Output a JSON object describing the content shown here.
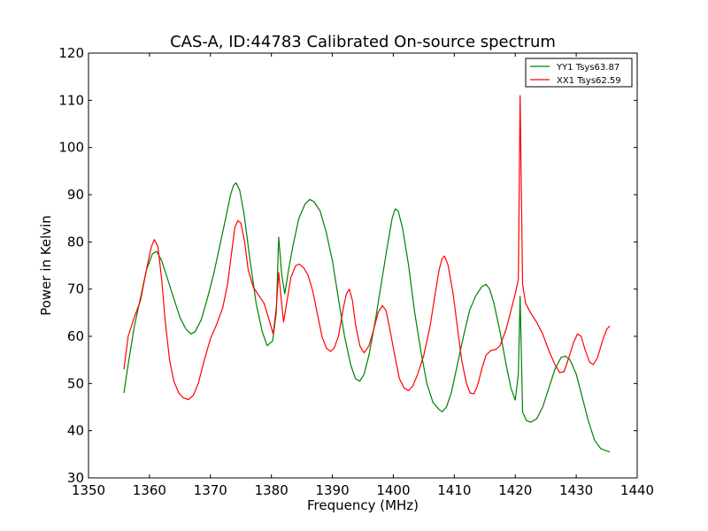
{
  "chart_data": {
    "type": "line",
    "title": "CAS-A, ID:44783 Calibrated On-source spectrum",
    "xlabel": "Frequency (MHz)",
    "ylabel": "Power in Kelvin",
    "xlim": [
      1350,
      1440
    ],
    "ylim": [
      30,
      120
    ],
    "xticks": [
      1350,
      1360,
      1370,
      1380,
      1390,
      1400,
      1410,
      1420,
      1430,
      1440
    ],
    "yticks": [
      30,
      40,
      50,
      60,
      70,
      80,
      90,
      100,
      110,
      120
    ],
    "grid": false,
    "legend_position": "top-right",
    "series": [
      {
        "name": "YY1 Tsys63.87",
        "color": "#008000",
        "points": [
          [
            1355.8,
            48
          ],
          [
            1356.5,
            54
          ],
          [
            1357.5,
            62
          ],
          [
            1358.5,
            68
          ],
          [
            1359.5,
            74
          ],
          [
            1360.5,
            77.5
          ],
          [
            1361.2,
            78
          ],
          [
            1362,
            76
          ],
          [
            1363,
            72
          ],
          [
            1364,
            68
          ],
          [
            1365,
            64
          ],
          [
            1366,
            61.5
          ],
          [
            1366.8,
            60.5
          ],
          [
            1367.5,
            61
          ],
          [
            1368.5,
            63.5
          ],
          [
            1369.5,
            68
          ],
          [
            1370.5,
            73
          ],
          [
            1371.5,
            79
          ],
          [
            1372.5,
            85
          ],
          [
            1373.3,
            90
          ],
          [
            1373.8,
            92
          ],
          [
            1374.2,
            92.5
          ],
          [
            1374.8,
            91
          ],
          [
            1375.5,
            86
          ],
          [
            1376.5,
            76
          ],
          [
            1377.5,
            67
          ],
          [
            1378.5,
            61
          ],
          [
            1379.3,
            58
          ],
          [
            1380.2,
            59
          ],
          [
            1380.8,
            65
          ],
          [
            1381.2,
            81
          ],
          [
            1381.7,
            73
          ],
          [
            1382.2,
            69
          ],
          [
            1382.8,
            74
          ],
          [
            1383.5,
            79
          ],
          [
            1384.5,
            85
          ],
          [
            1385.5,
            88
          ],
          [
            1386.3,
            89
          ],
          [
            1387,
            88.5
          ],
          [
            1388,
            86.5
          ],
          [
            1389,
            82
          ],
          [
            1390,
            76
          ],
          [
            1391,
            68
          ],
          [
            1392,
            60
          ],
          [
            1393,
            54
          ],
          [
            1393.8,
            51
          ],
          [
            1394.5,
            50.5
          ],
          [
            1395.2,
            52
          ],
          [
            1396,
            56
          ],
          [
            1397,
            63
          ],
          [
            1398,
            71
          ],
          [
            1399,
            79
          ],
          [
            1399.8,
            85
          ],
          [
            1400.3,
            87
          ],
          [
            1400.8,
            86.5
          ],
          [
            1401.5,
            83
          ],
          [
            1402.5,
            75
          ],
          [
            1403.5,
            65
          ],
          [
            1404.5,
            57
          ],
          [
            1405.5,
            50
          ],
          [
            1406.5,
            46
          ],
          [
            1407.5,
            44.5
          ],
          [
            1408,
            44
          ],
          [
            1408.7,
            45
          ],
          [
            1409.5,
            48
          ],
          [
            1410.5,
            54
          ],
          [
            1411.5,
            60
          ],
          [
            1412.5,
            65.5
          ],
          [
            1413.5,
            68.5
          ],
          [
            1414.5,
            70.5
          ],
          [
            1415.2,
            71
          ],
          [
            1415.8,
            70
          ],
          [
            1416.5,
            67
          ],
          [
            1417.5,
            61
          ],
          [
            1418.5,
            54
          ],
          [
            1419.3,
            49
          ],
          [
            1420,
            46.5
          ],
          [
            1420.5,
            52
          ],
          [
            1420.8,
            68.5
          ],
          [
            1421.2,
            44
          ],
          [
            1421.8,
            42.2
          ],
          [
            1422.5,
            41.8
          ],
          [
            1423.5,
            42.5
          ],
          [
            1424.5,
            45
          ],
          [
            1425.5,
            49
          ],
          [
            1426.5,
            53
          ],
          [
            1427.5,
            55.5
          ],
          [
            1428.2,
            55.8
          ],
          [
            1429,
            55
          ],
          [
            1430,
            52
          ],
          [
            1431,
            47
          ],
          [
            1432,
            42
          ],
          [
            1433,
            38
          ],
          [
            1434,
            36.2
          ],
          [
            1435,
            35.7
          ],
          [
            1435.5,
            35.5
          ]
        ]
      },
      {
        "name": "XX1 Tsys62.59",
        "color": "#ff0000",
        "points": [
          [
            1355.8,
            53
          ],
          [
            1356.5,
            60
          ],
          [
            1357.5,
            64
          ],
          [
            1358.5,
            67.5
          ],
          [
            1359.5,
            74
          ],
          [
            1360.3,
            79
          ],
          [
            1360.8,
            80.5
          ],
          [
            1361.4,
            79
          ],
          [
            1362,
            72
          ],
          [
            1362.6,
            63
          ],
          [
            1363.3,
            55
          ],
          [
            1364,
            50.5
          ],
          [
            1364.8,
            48
          ],
          [
            1365.5,
            47
          ],
          [
            1366.4,
            46.6
          ],
          [
            1367.2,
            47.5
          ],
          [
            1368,
            50
          ],
          [
            1369,
            55
          ],
          [
            1370,
            59.5
          ],
          [
            1371,
            62.5
          ],
          [
            1372,
            66
          ],
          [
            1372.8,
            71
          ],
          [
            1373.5,
            78
          ],
          [
            1374,
            83
          ],
          [
            1374.5,
            84.5
          ],
          [
            1375,
            84
          ],
          [
            1375.6,
            80
          ],
          [
            1376.2,
            74
          ],
          [
            1377,
            70.5
          ],
          [
            1378,
            68.5
          ],
          [
            1378.8,
            67
          ],
          [
            1379.5,
            64
          ],
          [
            1380.3,
            60.5
          ],
          [
            1380.8,
            66
          ],
          [
            1381.2,
            73.5
          ],
          [
            1381.6,
            68
          ],
          [
            1382,
            63
          ],
          [
            1382.5,
            67
          ],
          [
            1383.2,
            72.5
          ],
          [
            1384,
            75
          ],
          [
            1384.6,
            75.3
          ],
          [
            1385.3,
            74.5
          ],
          [
            1386,
            73
          ],
          [
            1386.8,
            69.5
          ],
          [
            1387.5,
            65
          ],
          [
            1388.3,
            60
          ],
          [
            1389,
            57.5
          ],
          [
            1389.7,
            56.8
          ],
          [
            1390.3,
            57.5
          ],
          [
            1391,
            60
          ],
          [
            1391.8,
            66
          ],
          [
            1392.3,
            69
          ],
          [
            1392.8,
            70
          ],
          [
            1393.3,
            67.5
          ],
          [
            1393.8,
            62.5
          ],
          [
            1394.5,
            58
          ],
          [
            1395.2,
            56.5
          ],
          [
            1396,
            58
          ],
          [
            1396.8,
            61.5
          ],
          [
            1397.5,
            65
          ],
          [
            1398.2,
            66.5
          ],
          [
            1398.8,
            65.5
          ],
          [
            1399.5,
            61
          ],
          [
            1400.3,
            55.5
          ],
          [
            1401,
            51
          ],
          [
            1401.8,
            49
          ],
          [
            1402.5,
            48.5
          ],
          [
            1403.2,
            49.5
          ],
          [
            1404,
            52
          ],
          [
            1405,
            56
          ],
          [
            1406,
            62
          ],
          [
            1406.8,
            68.5
          ],
          [
            1407.5,
            74
          ],
          [
            1408,
            76.5
          ],
          [
            1408.4,
            77
          ],
          [
            1409,
            75
          ],
          [
            1409.8,
            69
          ],
          [
            1410.5,
            62
          ],
          [
            1411.2,
            55
          ],
          [
            1412,
            50
          ],
          [
            1412.6,
            48
          ],
          [
            1413.2,
            47.8
          ],
          [
            1413.8,
            49.5
          ],
          [
            1414.5,
            53
          ],
          [
            1415.2,
            56
          ],
          [
            1416,
            57
          ],
          [
            1416.8,
            57.2
          ],
          [
            1417.5,
            58
          ],
          [
            1418.5,
            61.5
          ],
          [
            1419.3,
            65.5
          ],
          [
            1420,
            69
          ],
          [
            1420.5,
            72
          ],
          [
            1420.8,
            111
          ],
          [
            1421.2,
            71
          ],
          [
            1421.7,
            67
          ],
          [
            1422.5,
            65
          ],
          [
            1423.5,
            63
          ],
          [
            1424.5,
            60.5
          ],
          [
            1425.5,
            57
          ],
          [
            1426.5,
            54
          ],
          [
            1427.3,
            52.3
          ],
          [
            1428,
            52.5
          ],
          [
            1428.8,
            55.5
          ],
          [
            1429.5,
            58.5
          ],
          [
            1430.2,
            60.5
          ],
          [
            1430.8,
            60
          ],
          [
            1431.5,
            57
          ],
          [
            1432.2,
            54.5
          ],
          [
            1432.8,
            54
          ],
          [
            1433.5,
            55.5
          ],
          [
            1434.3,
            59
          ],
          [
            1435,
            61.5
          ],
          [
            1435.5,
            62.2
          ]
        ]
      }
    ]
  }
}
